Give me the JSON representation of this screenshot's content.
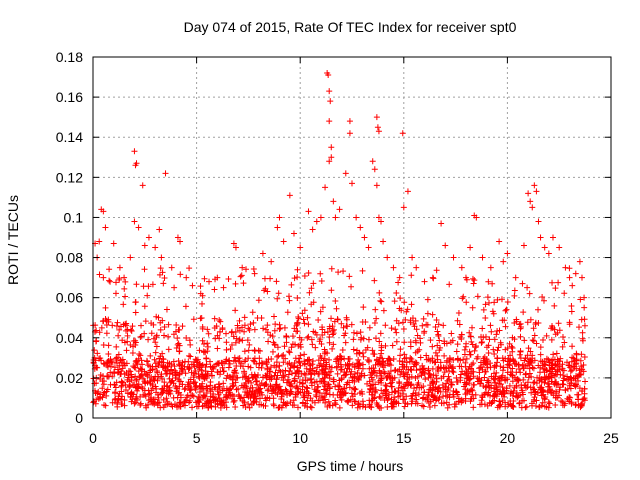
{
  "chart_data": {
    "type": "scatter",
    "title": "Day 074 of 2015, Rate Of TEC Index for receiver spt0",
    "xlabel": "GPS time / hours",
    "ylabel": "ROTI / TECUs",
    "xlim": [
      0,
      25
    ],
    "ylim": [
      0,
      0.18
    ],
    "x_ticks": [
      0,
      5,
      10,
      15,
      20,
      25
    ],
    "x_tick_labels": [
      "0",
      "5",
      "10",
      "15",
      "20",
      "25"
    ],
    "y_ticks": [
      0,
      0.02,
      0.04,
      0.06,
      0.08,
      0.1,
      0.12,
      0.14,
      0.16,
      0.18
    ],
    "y_tick_labels": [
      "0",
      "0.02",
      "0.04",
      "0.06",
      "0.08",
      "0.1",
      "0.12",
      "0.14",
      "0.16",
      "0.18"
    ],
    "grid": true,
    "marker": "+",
    "color": "#ff0000",
    "series": [
      {
        "points": [
          [
            0.1,
            0.087
          ],
          [
            0.3,
            0.088
          ],
          [
            0.4,
            0.104
          ],
          [
            0.5,
            0.103
          ],
          [
            0.6,
            0.095
          ],
          [
            0.2,
            0.08
          ],
          [
            0.5,
            0.07
          ],
          [
            1.0,
            0.087
          ],
          [
            1.3,
            0.075
          ],
          [
            1.5,
            0.07
          ],
          [
            1.8,
            0.08
          ],
          [
            2.0,
            0.133
          ],
          [
            2.1,
            0.127
          ],
          [
            2.05,
            0.126
          ],
          [
            2.0,
            0.098
          ],
          [
            2.2,
            0.095
          ],
          [
            2.4,
            0.116
          ],
          [
            2.5,
            0.086
          ],
          [
            2.7,
            0.09
          ],
          [
            3.0,
            0.085
          ],
          [
            3.2,
            0.094
          ],
          [
            3.5,
            0.122
          ],
          [
            3.3,
            0.08
          ],
          [
            3.8,
            0.075
          ],
          [
            4.1,
            0.09
          ],
          [
            4.2,
            0.088
          ],
          [
            4.5,
            0.07
          ],
          [
            4.8,
            0.066
          ],
          [
            5.2,
            0.062
          ],
          [
            5.6,
            0.068
          ],
          [
            6.0,
            0.07
          ],
          [
            6.3,
            0.065
          ],
          [
            6.8,
            0.087
          ],
          [
            6.9,
            0.085
          ],
          [
            7.2,
            0.075
          ],
          [
            7.8,
            0.072
          ],
          [
            8.2,
            0.082
          ],
          [
            8.6,
            0.078
          ],
          [
            8.9,
            0.095
          ],
          [
            9.0,
            0.1
          ],
          [
            9.2,
            0.088
          ],
          [
            9.5,
            0.111
          ],
          [
            9.7,
            0.092
          ],
          [
            10.0,
            0.085
          ],
          [
            10.4,
            0.103
          ],
          [
            10.6,
            0.094
          ],
          [
            10.8,
            0.098
          ],
          [
            11.0,
            0.1
          ],
          [
            11.2,
            0.115
          ],
          [
            11.3,
            0.172
          ],
          [
            11.35,
            0.171
          ],
          [
            11.4,
            0.163
          ],
          [
            11.45,
            0.158
          ],
          [
            11.4,
            0.148
          ],
          [
            11.5,
            0.135
          ],
          [
            11.4,
            0.128
          ],
          [
            11.5,
            0.13
          ],
          [
            11.6,
            0.108
          ],
          [
            11.7,
            0.1
          ],
          [
            11.9,
            0.104
          ],
          [
            12.2,
            0.122
          ],
          [
            12.4,
            0.148
          ],
          [
            12.4,
            0.142
          ],
          [
            12.5,
            0.117
          ],
          [
            12.7,
            0.1
          ],
          [
            12.9,
            0.095
          ],
          [
            13.1,
            0.09
          ],
          [
            13.3,
            0.085
          ],
          [
            13.5,
            0.128
          ],
          [
            13.6,
            0.124
          ],
          [
            13.7,
            0.15
          ],
          [
            13.75,
            0.145
          ],
          [
            13.8,
            0.143
          ],
          [
            13.7,
            0.116
          ],
          [
            13.8,
            0.1
          ],
          [
            13.9,
            0.098
          ],
          [
            14.0,
            0.088
          ],
          [
            14.2,
            0.08
          ],
          [
            14.5,
            0.075
          ],
          [
            14.8,
            0.07
          ],
          [
            14.95,
            0.142
          ],
          [
            15.0,
            0.105
          ],
          [
            15.2,
            0.113
          ],
          [
            15.4,
            0.08
          ],
          [
            15.6,
            0.075
          ],
          [
            16.0,
            0.068
          ],
          [
            16.4,
            0.07
          ],
          [
            16.8,
            0.097
          ],
          [
            17.0,
            0.086
          ],
          [
            17.4,
            0.08
          ],
          [
            17.8,
            0.075
          ],
          [
            18.0,
            0.07
          ],
          [
            18.2,
            0.085
          ],
          [
            18.4,
            0.101
          ],
          [
            18.5,
            0.1
          ],
          [
            18.8,
            0.08
          ],
          [
            19.2,
            0.075
          ],
          [
            19.6,
            0.088
          ],
          [
            19.8,
            0.078
          ],
          [
            20.0,
            0.082
          ],
          [
            20.4,
            0.07
          ],
          [
            20.8,
            0.086
          ],
          [
            21.0,
            0.112
          ],
          [
            21.1,
            0.108
          ],
          [
            21.2,
            0.105
          ],
          [
            21.3,
            0.116
          ],
          [
            21.4,
            0.113
          ],
          [
            21.5,
            0.098
          ],
          [
            21.6,
            0.09
          ],
          [
            21.8,
            0.085
          ],
          [
            22.0,
            0.082
          ],
          [
            22.2,
            0.09
          ],
          [
            22.5,
            0.085
          ],
          [
            22.8,
            0.075
          ],
          [
            23.0,
            0.07
          ],
          [
            23.3,
            0.072
          ],
          [
            23.5,
            0.078
          ],
          [
            23.6,
            0.07
          ],
          [
            23.7,
            0.06
          ]
        ]
      }
    ]
  }
}
